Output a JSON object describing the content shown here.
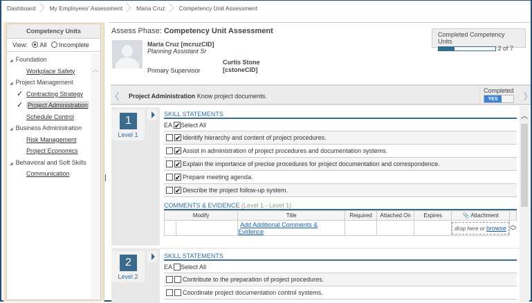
{
  "breadcrumbs": [
    "Dashboard",
    "My Employees' Assessment",
    "Maria Cruz",
    "Competency Unit Assessment"
  ],
  "sidebar": {
    "title": "Competency Units",
    "view_label": "View:",
    "view_options": [
      {
        "label": "All",
        "selected": true
      },
      {
        "label": "Incomplete",
        "selected": false
      }
    ],
    "groups": [
      {
        "label": "Foundation",
        "items": [
          {
            "label": "Workplace Safety",
            "done": false
          }
        ]
      },
      {
        "label": "Project Management",
        "items": [
          {
            "label": "Contracting Strategy",
            "done": true
          },
          {
            "label": "Project Administration",
            "done": true,
            "selected": true
          },
          {
            "label": "Schedule Control",
            "done": false
          }
        ]
      },
      {
        "label": "Business Administration",
        "items": [
          {
            "label": "Risk Management",
            "done": false
          },
          {
            "label": "Project Economics",
            "done": false
          }
        ]
      },
      {
        "label": "Behavioral and Soft Skills",
        "items": [
          {
            "label": "Communication",
            "done": false
          }
        ]
      }
    ]
  },
  "header": {
    "phase_label": "Assess Phase:",
    "title": "Competency Unit Assessment"
  },
  "employee": {
    "name": "Maria Cruz [mcruzCID]",
    "role": "Planning Assistant Sr",
    "supervisor_label": "Primary Supervisor",
    "supervisor_name": "Curtis Stone",
    "supervisor_id": "[cstoneCID]"
  },
  "progress": {
    "label": "Completed Competency Units",
    "completed": 2,
    "total": 7,
    "text": "2 of 7",
    "color": "#2e6e8e"
  },
  "unit": {
    "name": "Project Administration",
    "description": "Know project documents.",
    "completed_label": "Completed",
    "completed_value": "YES"
  },
  "levels": [
    {
      "number": "1",
      "label": "Level 1",
      "section": "SKILL STATEMENTS",
      "ea": "EA",
      "select_all": "Select All",
      "select_all_checked": true,
      "statements": [
        {
          "text": "Identify hierarchy and content of project procedures.",
          "ea": false,
          "checked": true
        },
        {
          "text": "Assist in administration of project procedures and documentation systems.",
          "ea": false,
          "checked": true
        },
        {
          "text": "Explain the importance of precise procedures for project documentation and correspondence.",
          "ea": false,
          "checked": true
        },
        {
          "text": "Prepare meeting agenda.",
          "ea": false,
          "checked": true
        },
        {
          "text": "Describe the project follow-up system.",
          "ea": false,
          "checked": true
        }
      ],
      "comments_title": "COMMENTS & EVIDENCE",
      "comments_sub": "(Level 1 - Level 1)",
      "columns": [
        "Modify",
        "Title",
        "Required",
        "Attached On",
        "Expires",
        "Attachment"
      ],
      "add_link": "Add Additional Comments & Evidence",
      "drop_text": "drop here or",
      "browse": "browse"
    },
    {
      "number": "2",
      "label": "Level 2",
      "section": "SKILL STATEMENTS",
      "ea": "EA",
      "select_all": "Select All",
      "select_all_checked": false,
      "statements": [
        {
          "text": "Contribute to the preparation of project procedures.",
          "ea": false,
          "checked": false
        },
        {
          "text": "Coordinate project documentation control systems.",
          "ea": false,
          "checked": false
        }
      ]
    }
  ]
}
